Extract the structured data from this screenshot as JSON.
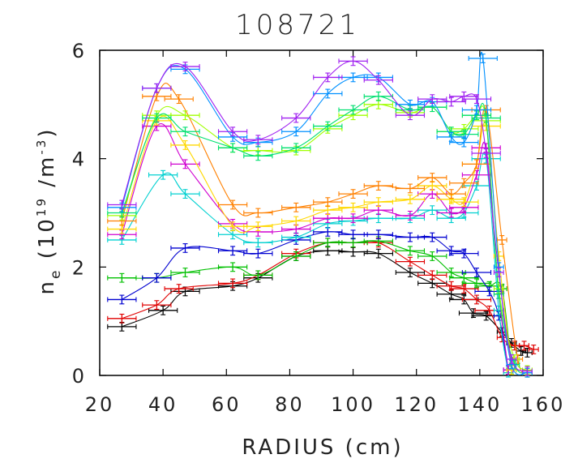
{
  "chart_data": {
    "type": "line",
    "title": "108721",
    "xlabel": "RADIUS (cm)",
    "ylabel_main": "n",
    "ylabel_sub": "e",
    "ylabel_paren_open": " (10",
    "ylabel_exp1": "19",
    "ylabel_unit": " /m",
    "ylabel_exp2": "-3",
    "ylabel_paren_close": ")",
    "xlim": [
      20,
      160
    ],
    "ylim": [
      0,
      6
    ],
    "xticks": [
      "20",
      "40",
      "60",
      "80",
      "100",
      "120",
      "140",
      "160"
    ],
    "yticks": [
      "0",
      "2",
      "4",
      "6"
    ],
    "grid": false,
    "series": [
      {
        "color": "#000000",
        "x": [
          27,
          40,
          47,
          62,
          70,
          82,
          92,
          100,
          108,
          118,
          125,
          131,
          135,
          138,
          142,
          147,
          150,
          153,
          155
        ],
        "y": [
          0.9,
          1.2,
          1.55,
          1.65,
          1.8,
          2.2,
          2.3,
          2.28,
          2.25,
          1.9,
          1.7,
          1.5,
          1.4,
          1.15,
          1.1,
          0.8,
          0.6,
          0.45,
          0.42
        ]
      },
      {
        "color": "#e00000",
        "x": [
          27,
          38,
          45,
          62,
          70,
          82,
          92,
          100,
          108,
          118,
          125,
          131,
          135,
          139,
          143,
          147,
          151,
          154,
          157
        ],
        "y": [
          1.05,
          1.3,
          1.6,
          1.7,
          1.85,
          2.25,
          2.45,
          2.45,
          2.45,
          2.1,
          1.85,
          1.65,
          1.6,
          1.4,
          1.2,
          0.7,
          0.55,
          0.55,
          0.48
        ]
      },
      {
        "color": "#00c000",
        "x": [
          27,
          38,
          47,
          62,
          70,
          82,
          92,
          100,
          108,
          118,
          125,
          131,
          135,
          139,
          143,
          147,
          150
        ],
        "y": [
          1.8,
          1.8,
          1.9,
          2.0,
          1.85,
          2.2,
          2.45,
          2.45,
          2.48,
          2.3,
          2.2,
          1.9,
          1.8,
          1.7,
          1.65,
          1.6,
          0.1
        ]
      },
      {
        "color": "#0000d0",
        "x": [
          27,
          38,
          47,
          62,
          70,
          82,
          92,
          100,
          108,
          118,
          125,
          131,
          135,
          139,
          143,
          146,
          149
        ],
        "y": [
          1.4,
          1.8,
          2.35,
          2.3,
          2.25,
          2.5,
          2.65,
          2.6,
          2.6,
          2.55,
          2.55,
          2.3,
          2.25,
          1.9,
          1.55,
          1.1,
          0.1
        ]
      },
      {
        "color": "#00d0d0",
        "x": [
          27,
          40,
          47,
          62,
          70,
          82,
          92,
          100,
          108,
          118,
          125,
          131,
          135,
          139,
          142,
          146,
          149
        ],
        "y": [
          2.5,
          3.7,
          3.35,
          2.6,
          2.45,
          2.55,
          2.8,
          2.85,
          2.9,
          2.9,
          3.05,
          2.9,
          3.0,
          3.5,
          4.0,
          1.2,
          0.05
        ]
      },
      {
        "color": "#d000d0",
        "x": [
          27,
          38,
          47,
          62,
          70,
          82,
          92,
          100,
          108,
          118,
          125,
          131,
          135,
          139,
          142,
          146,
          149
        ],
        "y": [
          2.6,
          4.6,
          3.9,
          2.8,
          2.65,
          2.7,
          2.9,
          2.9,
          3.05,
          2.95,
          3.35,
          3.0,
          3.1,
          3.7,
          4.2,
          1.5,
          0.1
        ]
      },
      {
        "color": "#ffd800",
        "x": [
          27,
          38,
          47,
          62,
          70,
          82,
          92,
          100,
          108,
          118,
          125,
          131,
          135,
          139,
          142,
          146,
          150
        ],
        "y": [
          2.7,
          4.7,
          4.25,
          2.75,
          2.75,
          2.85,
          3.05,
          3.1,
          3.2,
          3.25,
          3.5,
          3.25,
          3.2,
          3.9,
          4.6,
          2.2,
          0.1
        ]
      },
      {
        "color": "#ff8000",
        "x": [
          27,
          38,
          45,
          62,
          70,
          82,
          92,
          100,
          108,
          118,
          125,
          131,
          135,
          139,
          142,
          147,
          152,
          155
        ],
        "y": [
          2.85,
          5.15,
          5.1,
          3.15,
          3.0,
          3.1,
          3.2,
          3.35,
          3.5,
          3.45,
          3.65,
          3.35,
          3.55,
          3.9,
          4.9,
          2.5,
          0.3,
          0.05
        ]
      },
      {
        "color": "#a0ff00",
        "x": [
          27,
          38,
          47,
          62,
          70,
          82,
          92,
          100,
          108,
          118,
          125,
          131,
          135,
          139,
          142,
          146,
          151,
          155
        ],
        "y": [
          2.95,
          4.8,
          4.8,
          4.2,
          4.15,
          4.15,
          4.55,
          4.8,
          5.0,
          4.85,
          4.95,
          4.5,
          4.55,
          4.8,
          4.7,
          1.6,
          0.3,
          0.1
        ]
      },
      {
        "color": "#00e070",
        "x": [
          27,
          38,
          47,
          62,
          70,
          82,
          92,
          100,
          108,
          118,
          125,
          131,
          135,
          139,
          142,
          146,
          151,
          155
        ],
        "y": [
          3.0,
          4.75,
          4.5,
          4.2,
          4.05,
          4.2,
          4.6,
          4.9,
          5.15,
          4.9,
          4.95,
          4.5,
          4.45,
          4.8,
          4.75,
          1.5,
          0.2,
          0.05
        ]
      },
      {
        "color": "#0090ff",
        "x": [
          27,
          38,
          47,
          62,
          70,
          82,
          92,
          100,
          108,
          118,
          125,
          131,
          135,
          139,
          141,
          146,
          150,
          155
        ],
        "y": [
          3.1,
          5.3,
          5.65,
          4.4,
          4.3,
          4.5,
          5.2,
          5.5,
          5.5,
          5.0,
          5.05,
          4.4,
          4.3,
          4.9,
          5.85,
          2.0,
          0.2,
          0.05
        ]
      },
      {
        "color": "#a020f0",
        "x": [
          27,
          38,
          47,
          62,
          70,
          82,
          92,
          100,
          108,
          118,
          125,
          131,
          135,
          139,
          142,
          146,
          150,
          155
        ],
        "y": [
          3.15,
          5.3,
          5.7,
          4.5,
          4.35,
          4.75,
          5.5,
          5.8,
          5.45,
          4.8,
          5.1,
          5.05,
          5.15,
          5.1,
          4.1,
          1.9,
          0.3,
          0.08
        ]
      }
    ]
  }
}
